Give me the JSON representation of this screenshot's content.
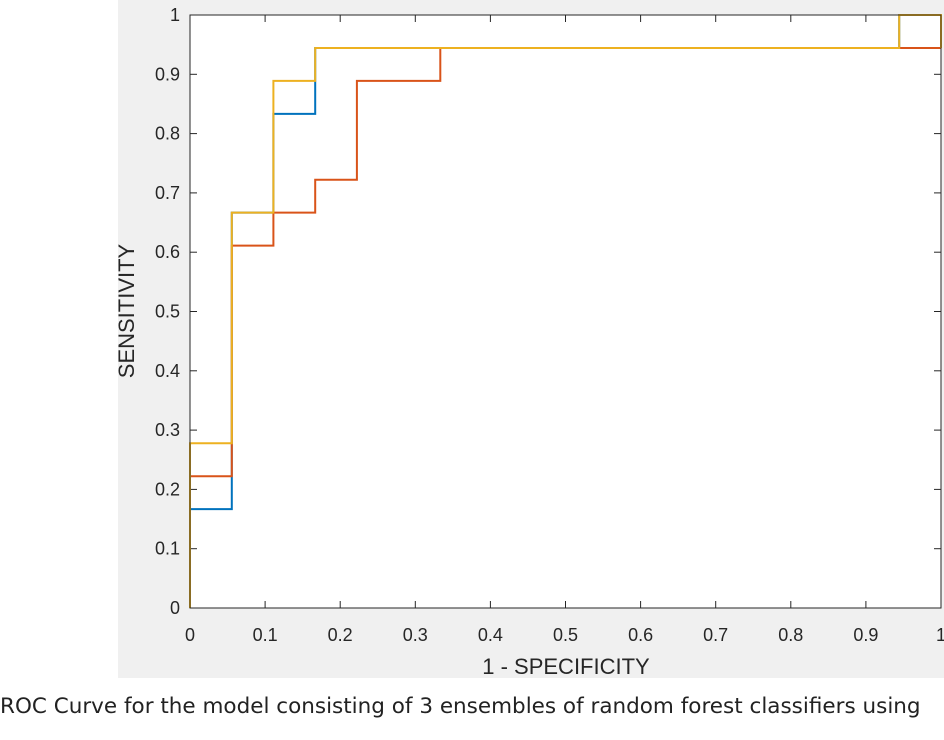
{
  "chart_data": {
    "type": "line",
    "title": "",
    "xlabel": "1 - SPECIFICITY",
    "ylabel": "SENSITIVITY",
    "xlim": [
      0,
      1
    ],
    "ylim": [
      0,
      1
    ],
    "xticks": [
      "0",
      "0.1",
      "0.2",
      "0.3",
      "0.4",
      "0.5",
      "0.6",
      "0.7",
      "0.8",
      "0.9",
      "1"
    ],
    "yticks": [
      "0",
      "0.1",
      "0.2",
      "0.3",
      "0.4",
      "0.5",
      "0.6",
      "0.7",
      "0.8",
      "0.9",
      "1"
    ],
    "grid": false,
    "legend": "none",
    "series": [
      {
        "color": "#0072BD",
        "x": [
          0,
          0,
          0.0556,
          0.0556,
          0.0556,
          0.1111,
          0.1111,
          0.1667,
          0.1667,
          0.9444,
          0.9444,
          1
        ],
        "y": [
          0,
          0.1667,
          0.1667,
          0.2222,
          0.6667,
          0.6667,
          0.8333,
          0.8333,
          0.9444,
          0.9444,
          1,
          1
        ]
      },
      {
        "color": "#D95319",
        "x": [
          0,
          0,
          0.0556,
          0.0556,
          0.1111,
          0.1111,
          0.1667,
          0.1667,
          0.2222,
          0.2222,
          0.3333,
          0.3333,
          0.9444,
          1
        ],
        "y": [
          0,
          0.2222,
          0.2222,
          0.6111,
          0.6111,
          0.6667,
          0.6667,
          0.7222,
          0.7222,
          0.8889,
          0.8889,
          0.9444,
          0.9444,
          0.9444
        ]
      },
      {
        "color": "#EDB120",
        "x": [
          0,
          0,
          0.0556,
          0.0556,
          0.1111,
          0.1111,
          0.1667,
          0.1667,
          0.9444,
          0.9444,
          1,
          1
        ],
        "y": [
          0,
          0.2778,
          0.2778,
          0.6667,
          0.6667,
          0.8889,
          0.8889,
          0.9444,
          0.9444,
          1,
          1,
          0.9444
        ]
      }
    ]
  },
  "caption": "ROC Curve for the model consisting of 3 ensembles of random forest classifiers using"
}
